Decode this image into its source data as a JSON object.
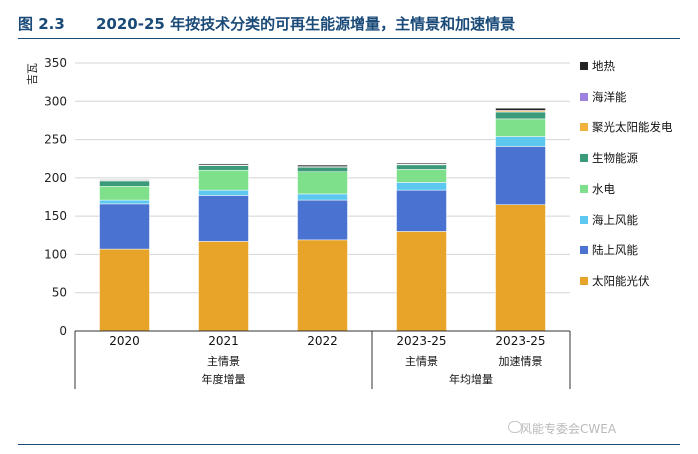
{
  "header": {
    "figure_number": "图 2.3",
    "title": "2020-25 年按技术分类的可再生能源增量，主情景和加速情景"
  },
  "colors": {
    "title": "#1a4a78"
  },
  "watermark": {
    "text": "风能专委会CWEA",
    "icon": "wechat-icon"
  },
  "chart_data": {
    "type": "bar",
    "stacked": true,
    "ylabel": "吉瓦",
    "ylim": [
      0,
      350
    ],
    "yticks": [
      0,
      50,
      100,
      150,
      200,
      250,
      300,
      350
    ],
    "grid": true,
    "legend_position": "right",
    "categories": [
      "2020",
      "2021",
      "2022",
      "2023-25",
      "2023-25"
    ],
    "category_sublabels": [
      "",
      "主情景",
      "",
      "主情景",
      "加速情景"
    ],
    "group_labels": [
      {
        "label": "年度增量",
        "span": [
          0,
          2
        ]
      },
      {
        "label": "年均增量",
        "span": [
          3,
          4
        ]
      }
    ],
    "series": [
      {
        "name": "太阳能光伏",
        "color": "#e8a428",
        "values": [
          107,
          117,
          119,
          130,
          165
        ]
      },
      {
        "name": "陆上风能",
        "color": "#4a72d0",
        "values": [
          59,
          60,
          52,
          54,
          76
        ]
      },
      {
        "name": "海上风能",
        "color": "#5cc8f0",
        "values": [
          5,
          7,
          8,
          10,
          13
        ]
      },
      {
        "name": "水电",
        "color": "#7ee08a",
        "values": [
          18,
          26,
          29,
          17,
          23
        ]
      },
      {
        "name": "生物能源",
        "color": "#3a9a7a",
        "values": [
          7,
          6,
          6,
          6,
          9
        ]
      },
      {
        "name": "聚光太阳能发电",
        "color": "#f0b23a",
        "values": [
          0.5,
          0.5,
          0.5,
          0.5,
          1.5
        ]
      },
      {
        "name": "海洋能",
        "color": "#a080e0",
        "values": [
          0.2,
          0.2,
          0.2,
          0.2,
          0.5
        ]
      },
      {
        "name": "地热",
        "color": "#222222",
        "values": [
          1,
          1.5,
          2,
          1.5,
          3
        ]
      }
    ]
  }
}
